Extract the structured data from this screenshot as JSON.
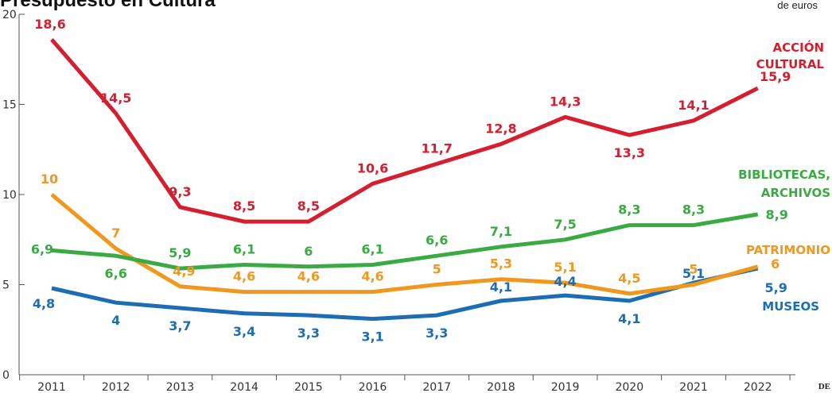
{
  "header": {
    "title": "Presupuesto en Cultura",
    "unit": "de euros",
    "credit": "DE"
  },
  "colors": {
    "accion": "#d51e2e",
    "bibliotecas": "#3aab42",
    "patrimonio": "#f0971d",
    "museos": "#1c6db3"
  },
  "chart_data": {
    "type": "line",
    "title": "Presupuesto en Cultura",
    "ylabel": "de euros",
    "x": [
      "2011",
      "2012",
      "2013",
      "2014",
      "2015",
      "2016",
      "2017",
      "2018",
      "2019",
      "2020",
      "2021",
      "2022"
    ],
    "ylim": [
      0,
      20
    ],
    "yticks": [
      "0",
      "5",
      "10",
      "15",
      "20"
    ],
    "grid": false,
    "series": [
      {
        "key": "accion",
        "name": "ACCIÓN CULTURAL",
        "name_lines": [
          "ACCIÓN",
          "CULTURAL"
        ],
        "values": [
          18.6,
          14.5,
          9.3,
          8.5,
          8.5,
          10.6,
          11.7,
          12.8,
          14.3,
          13.3,
          14.1,
          15.9
        ],
        "labels": [
          "18,6",
          "14,5",
          "9,3",
          "8,5",
          "8,5",
          "10,6",
          "11,7",
          "12,8",
          "14,3",
          "13,3",
          "14,1",
          "15,9"
        ]
      },
      {
        "key": "bibliotecas",
        "name": "BIBLIOTECAS, ARCHIVOS",
        "name_lines": [
          "BIBLIOTECAS,",
          "ARCHIVOS"
        ],
        "values": [
          6.9,
          6.6,
          5.9,
          6.1,
          6.0,
          6.1,
          6.6,
          7.1,
          7.5,
          8.3,
          8.3,
          8.9
        ],
        "labels": [
          "6,9",
          "6,6",
          "5,9",
          "6,1",
          "6",
          "6,1",
          "6,6",
          "7,1",
          "7,5",
          "8,3",
          "8,3",
          "8,9"
        ]
      },
      {
        "key": "patrimonio",
        "name": "PATRIMONIO",
        "name_lines": [
          "PATRIMONIO"
        ],
        "values": [
          10,
          7,
          4.9,
          4.6,
          4.6,
          4.6,
          5,
          5.3,
          5.1,
          4.5,
          5,
          6
        ],
        "labels": [
          "10",
          "7",
          "4,9",
          "4,6",
          "4,6",
          "4,6",
          "5",
          "5,3",
          "5,1",
          "4,5",
          "5",
          "6"
        ]
      },
      {
        "key": "museos",
        "name": "MUSEOS",
        "name_lines": [
          "MUSEOS"
        ],
        "values": [
          4.8,
          4,
          3.7,
          3.4,
          3.3,
          3.1,
          3.3,
          4.1,
          4.4,
          4.1,
          5.1,
          5.9
        ],
        "labels": [
          "4,8",
          "4",
          "3,7",
          "3,4",
          "3,3",
          "3,1",
          "3,3",
          "4,1",
          "4,4",
          "4,1",
          "5,1",
          "5,9"
        ]
      }
    ]
  }
}
